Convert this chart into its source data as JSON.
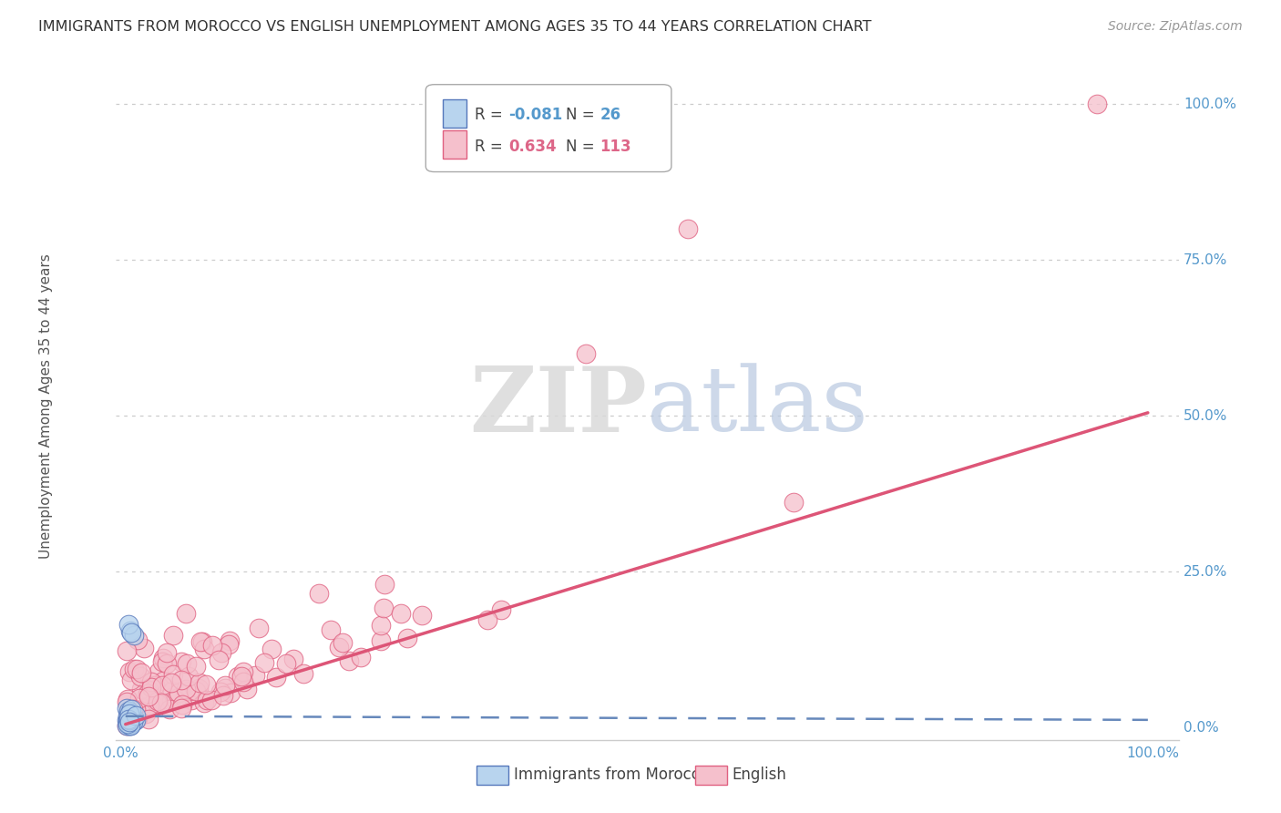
{
  "title": "IMMIGRANTS FROM MOROCCO VS ENGLISH UNEMPLOYMENT AMONG AGES 35 TO 44 YEARS CORRELATION CHART",
  "source": "Source: ZipAtlas.com",
  "ylabel": "Unemployment Among Ages 35 to 44 years",
  "legend_entry1_r": "R = ",
  "legend_entry1_rv": "-0.081",
  "legend_entry1_n": "  N = ",
  "legend_entry1_nv": "26",
  "legend_entry2_r": "R = ",
  "legend_entry2_rv": "0.634",
  "legend_entry2_n": "  N = ",
  "legend_entry2_nv": "113",
  "legend_label1": "Immigrants from Morocco",
  "legend_label2": "English",
  "watermark_zip": "ZIP",
  "watermark_atlas": "atlas",
  "color_morocco_fill": "#b8d4ee",
  "color_morocco_edge": "#5577bb",
  "color_english_fill": "#f5c0cc",
  "color_english_edge": "#e06080",
  "color_line_morocco": "#6688bb",
  "color_line_english": "#dd5577",
  "color_blue_text": "#5599cc",
  "color_pink_text": "#dd6688",
  "background_color": "#ffffff",
  "grid_color": "#cccccc",
  "title_color": "#333333",
  "source_color": "#999999",
  "ylabel_color": "#555555",
  "axis_color": "#cccccc"
}
